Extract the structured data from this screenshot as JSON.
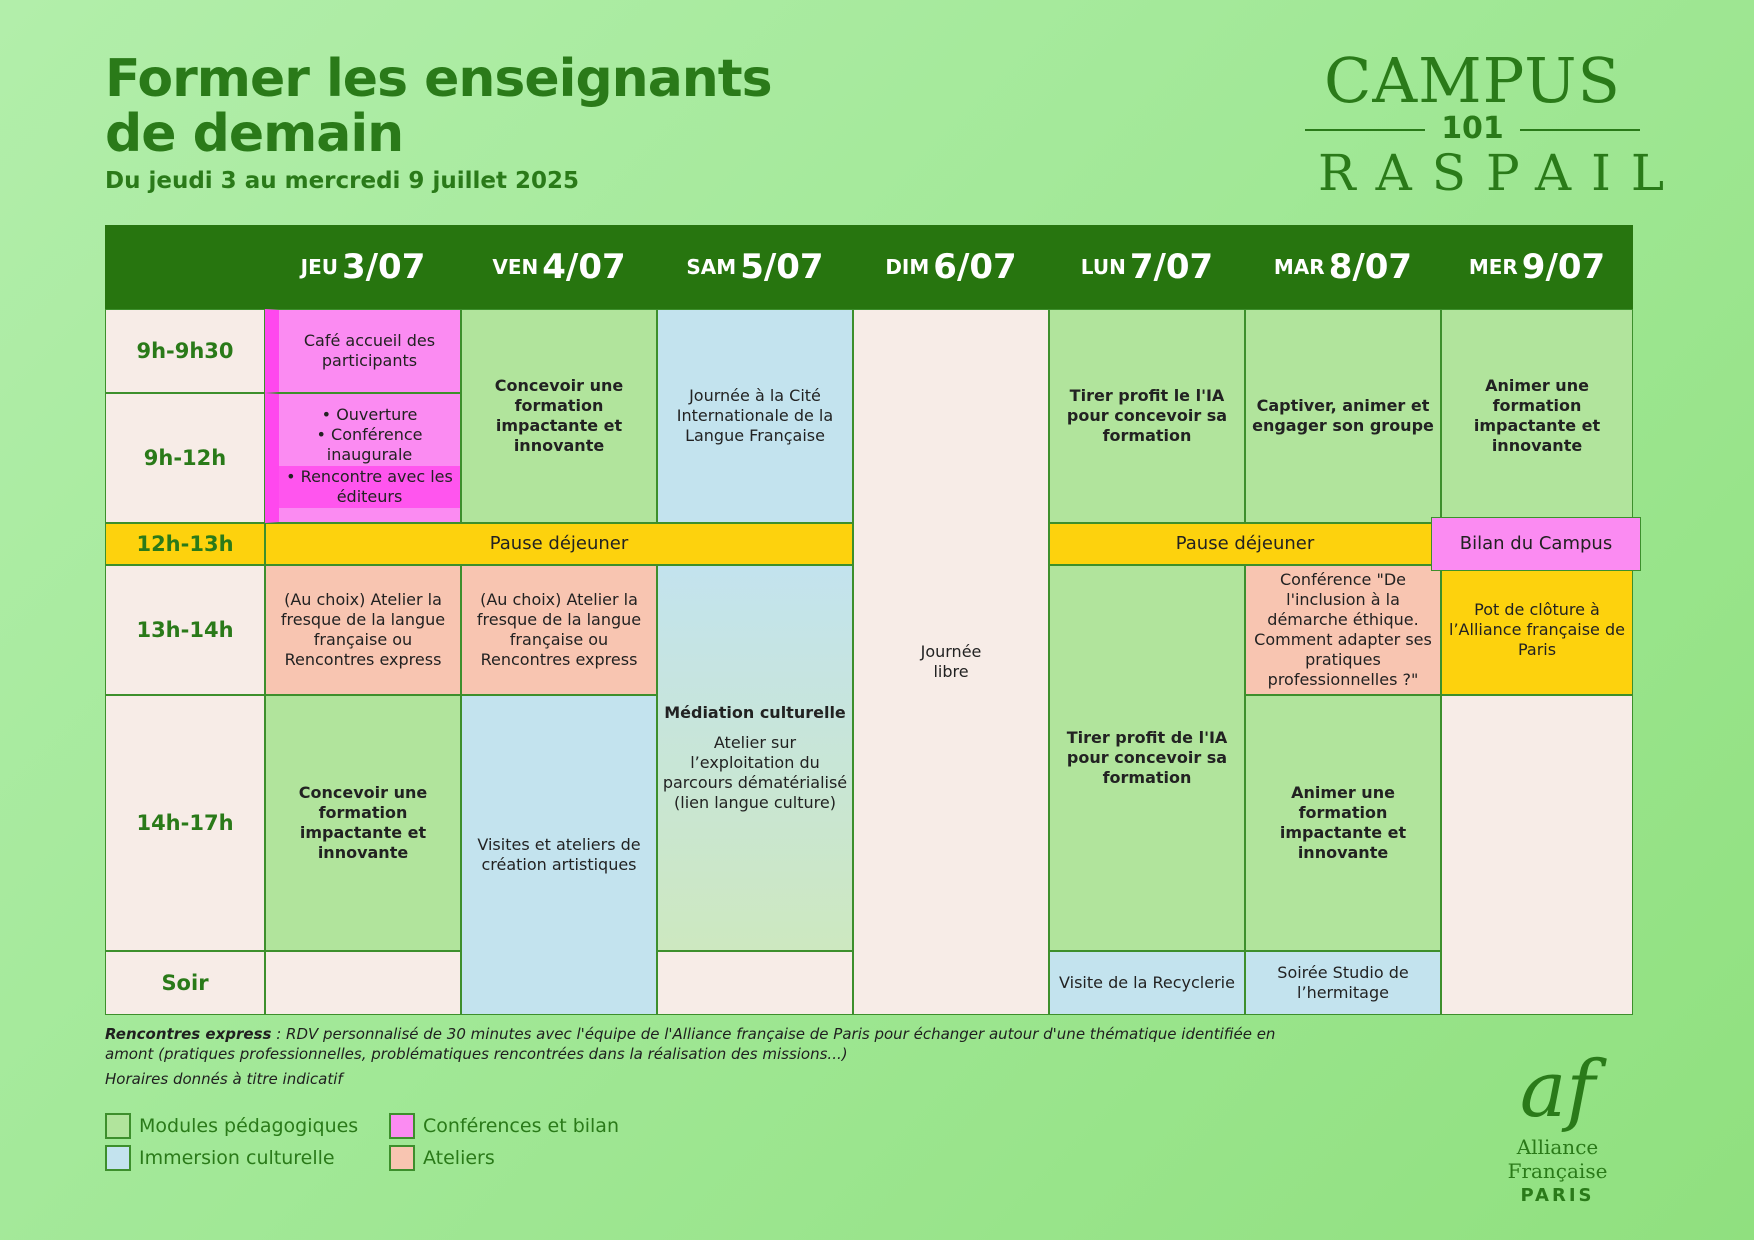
{
  "header": {
    "title_line1": "Former les enseignants",
    "title_line2": "de demain",
    "subtitle": "Du jeudi 3 au mercredi 9 juillet 2025"
  },
  "campus_logo": {
    "line1": "CAMPUS",
    "line2": "101",
    "line3": "RASPAIL"
  },
  "days": [
    {
      "name": "JEU",
      "date": "3/07"
    },
    {
      "name": "VEN",
      "date": "4/07"
    },
    {
      "name": "SAM",
      "date": "5/07"
    },
    {
      "name": "DIM",
      "date": "6/07"
    },
    {
      "name": "LUN",
      "date": "7/07"
    },
    {
      "name": "MAR",
      "date": "8/07"
    },
    {
      "name": "MER",
      "date": "9/07"
    }
  ],
  "times": [
    "9h-9h30",
    "9h-12h",
    "12h-13h",
    "13h-14h",
    "14h-17h",
    "Soir"
  ],
  "events": {
    "jeu_cafe": "Café accueil des participants",
    "jeu_ouverture": "• Ouverture",
    "jeu_conference": "• Conférence inaugurale",
    "jeu_editeurs": "• Rencontre avec les éditeurs",
    "pause1": "Pause déjeuner",
    "pause2": "Pause déjeuner",
    "jeu_atelier": "(Au choix) Atelier la fresque de la langue française ou Rencontres express",
    "jeu_concevoir": "Concevoir une formation impactante et innovante",
    "ven_concevoir": "Concevoir une formation impactante et innovante",
    "ven_atelier": "(Au choix) Atelier la fresque de la langue française ou Rencontres express",
    "ven_visites": "Visites et ateliers de création artistiques",
    "sam_journee": "Journée à la Cité Internationale de la Langue Française",
    "sam_mediation_title": "Médiation culturelle",
    "sam_mediation_text": "Atelier sur l’exploitation du parcours dématérialisé (lien langue culture)",
    "dim_libre": "Journée libre",
    "lun_ia1": "Tirer profit le l'IA pour concevoir sa formation",
    "lun_ia2": "Tirer profit de l'IA pour concevoir sa formation",
    "lun_visite": "Visite de la Recyclerie",
    "mar_captiver": "Captiver, animer et engager son groupe",
    "mar_conference": "Conférence \"De l'inclusion à la démarche éthique. Comment adapter ses pratiques professionnelles ?\"",
    "mar_animer": "Animer une formation impactante et innovante",
    "mar_soiree": "Soirée Studio de l’hermitage",
    "mer_animer": "Animer une formation impactante et innovante",
    "mer_bilan": "Bilan du Campus",
    "mer_pot": "Pot de clôture à l’Alliance française de Paris"
  },
  "notes": {
    "express_label": "Rencontres express",
    "express_text": " : RDV personnalisé de 30 minutes avec l'équipe de l'Alliance française de Paris pour échanger autour d'une thématique identifiée en amont (pratiques professionnelles, problématiques rencontrées dans la réalisation des missions...)",
    "horaires": "Horaires donnés à titre indicatif"
  },
  "legend": [
    {
      "label": "Modules pédagogiques",
      "color": "#b1e49c"
    },
    {
      "label": "Conférences et bilan",
      "color": "#fb8bf2"
    },
    {
      "label": "Immersion culturelle",
      "color": "#c3e3ee"
    },
    {
      "label": "Ateliers",
      "color": "#f8c5b1"
    }
  ],
  "af_logo": {
    "mark": "af",
    "name": "Alliance Française",
    "city": "PARIS"
  },
  "colors": {
    "brand_green": "#2a7a19",
    "header_green": "#27750f",
    "module_green": "#b1e49c",
    "immersion_blue": "#c3e3ee",
    "conference_pink": "#fb8bf2",
    "atelier_salmon": "#f8c5b1",
    "pause_yellow": "#fdd20d",
    "empty_cream": "#f7ece7"
  }
}
